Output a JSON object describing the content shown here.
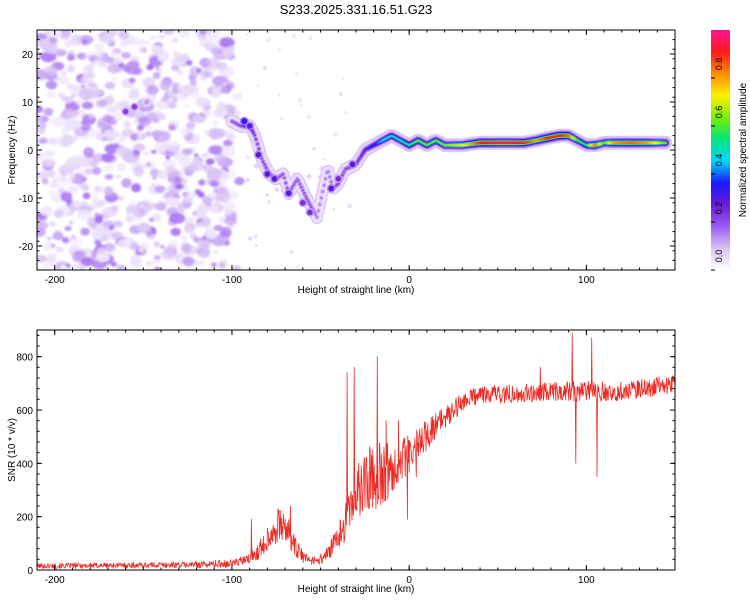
{
  "title": "S233.2025.331.16.51.G23",
  "colors": {
    "snr_line": "#ee2a24",
    "frame": "#000000",
    "background": "#ffffff",
    "colorbar": [
      "#ffffff",
      "#d9c2f5",
      "#9a5cf2",
      "#6a1bd6",
      "#1a1aff",
      "#00d8ff",
      "#00e67a",
      "#7cef00",
      "#fff000",
      "#ff8c00",
      "#ff1a1a",
      "#ff1493"
    ]
  },
  "chart_data": [
    {
      "type": "heatmap",
      "name": "spectrogram",
      "xlabel": "Height of straight line (km)",
      "ylabel": "Frequency (Hz)",
      "xlim": [
        -210,
        150
      ],
      "ylim": [
        -25,
        25
      ],
      "xticks": [
        -200,
        -100,
        0,
        100
      ],
      "yticks": [
        -20,
        -10,
        0,
        10,
        20
      ],
      "colorbar": {
        "label": "Normalized spectral amplitude",
        "range": [
          0,
          1
        ],
        "ticks": [
          "0.0",
          "0.2",
          "0.4",
          "0.6",
          "0.8"
        ]
      },
      "noise_region": {
        "x": [
          -210,
          -100
        ],
        "y": [
          -25,
          25
        ],
        "amplitude_range": [
          0.03,
          0.18
        ]
      },
      "ridge": [
        [
          -100,
          6,
          0.18
        ],
        [
          -95,
          5,
          0.2
        ],
        [
          -90,
          5,
          0.3
        ],
        [
          -87,
          3,
          0.22
        ],
        [
          -83,
          -2,
          0.2
        ],
        [
          -79,
          -5,
          0.22
        ],
        [
          -75,
          -6,
          0.2
        ],
        [
          -71,
          -5,
          0.18
        ],
        [
          -68,
          -9,
          0.2
        ],
        [
          -63,
          -6,
          0.18
        ],
        [
          -58,
          -10,
          0.2
        ],
        [
          -55,
          -12,
          0.2
        ],
        [
          -52,
          -14,
          0.15
        ],
        [
          -46,
          -4,
          0.15
        ],
        [
          -43,
          -8,
          0.18
        ],
        [
          -40,
          -7,
          0.22
        ],
        [
          -36,
          -4,
          0.2
        ],
        [
          -30,
          -3,
          0.22
        ],
        [
          -25,
          0,
          0.28
        ],
        [
          -20,
          1,
          0.35
        ],
        [
          -15,
          2,
          0.45
        ],
        [
          -10,
          3,
          0.5
        ],
        [
          -5,
          2,
          0.5
        ],
        [
          0,
          1,
          0.55
        ],
        [
          5,
          2,
          0.6
        ],
        [
          10,
          1,
          0.6
        ],
        [
          15,
          2,
          0.6
        ],
        [
          20,
          1,
          0.62
        ],
        [
          30,
          1,
          0.7
        ],
        [
          40,
          1.5,
          0.9
        ],
        [
          50,
          1.5,
          0.95
        ],
        [
          60,
          1.5,
          0.95
        ],
        [
          65,
          1.5,
          0.9
        ],
        [
          72,
          2,
          0.8
        ],
        [
          78,
          2.5,
          0.9
        ],
        [
          85,
          3,
          0.9
        ],
        [
          90,
          3,
          0.85
        ],
        [
          95,
          2,
          0.6
        ],
        [
          100,
          1,
          0.55
        ],
        [
          105,
          1,
          0.85
        ],
        [
          110,
          1.5,
          0.6
        ],
        [
          115,
          1.5,
          0.8
        ],
        [
          125,
          1.5,
          0.85
        ],
        [
          135,
          1.5,
          0.8
        ],
        [
          145,
          1.5,
          0.6
        ]
      ],
      "scattered_points": [
        [
          -93,
          6,
          0.35
        ],
        [
          -90,
          5,
          0.3
        ],
        [
          -85,
          -1,
          0.3
        ],
        [
          -80,
          -5,
          0.3
        ],
        [
          -76,
          -6,
          0.3
        ],
        [
          -68,
          -9,
          0.3
        ],
        [
          -60,
          -11,
          0.25
        ],
        [
          -56,
          -13,
          0.25
        ],
        [
          -44,
          -8,
          0.3
        ],
        [
          -40,
          -6,
          0.25
        ],
        [
          -32,
          -3,
          0.3
        ],
        [
          -155,
          9,
          0.22
        ],
        [
          -160,
          8,
          0.22
        ],
        [
          -148,
          10,
          0.12
        ]
      ]
    },
    {
      "type": "line",
      "name": "snr",
      "xlabel": "Height of straight line (km)",
      "ylabel": "SNR (10 * v/v)",
      "xlim": [
        -210,
        150
      ],
      "ylim": [
        0,
        900
      ],
      "xticks": [
        -200,
        -100,
        0,
        100
      ],
      "yticks": [
        0,
        200,
        400,
        600,
        800
      ],
      "envelope": [
        [
          -210,
          15,
          10
        ],
        [
          -120,
          20,
          12
        ],
        [
          -100,
          25,
          15
        ],
        [
          -90,
          40,
          20
        ],
        [
          -85,
          70,
          30
        ],
        [
          -80,
          120,
          50
        ],
        [
          -75,
          160,
          60
        ],
        [
          -72,
          170,
          60
        ],
        [
          -68,
          140,
          50
        ],
        [
          -64,
          80,
          40
        ],
        [
          -60,
          50,
          25
        ],
        [
          -55,
          35,
          15
        ],
        [
          -50,
          40,
          20
        ],
        [
          -45,
          70,
          30
        ],
        [
          -40,
          120,
          50
        ],
        [
          -35,
          200,
          80
        ],
        [
          -30,
          280,
          100
        ],
        [
          -25,
          330,
          120
        ],
        [
          -20,
          350,
          130
        ],
        [
          -15,
          360,
          130
        ],
        [
          -10,
          380,
          90
        ],
        [
          -5,
          410,
          80
        ],
        [
          0,
          430,
          80
        ],
        [
          5,
          470,
          70
        ],
        [
          10,
          510,
          60
        ],
        [
          15,
          540,
          50
        ],
        [
          20,
          570,
          40
        ],
        [
          25,
          600,
          40
        ],
        [
          30,
          630,
          35
        ],
        [
          40,
          660,
          35
        ],
        [
          60,
          660,
          35
        ],
        [
          80,
          670,
          35
        ],
        [
          100,
          670,
          40
        ],
        [
          120,
          670,
          35
        ],
        [
          150,
          700,
          35
        ]
      ],
      "spikes": [
        [
          -89,
          190
        ],
        [
          -74,
          230
        ],
        [
          -67,
          240
        ],
        [
          -35,
          740
        ],
        [
          -31,
          760
        ],
        [
          -18,
          800
        ],
        [
          -13,
          560
        ],
        [
          -6,
          560
        ],
        [
          4,
          350
        ],
        [
          -1,
          190
        ],
        [
          74,
          760
        ],
        [
          92,
          890
        ],
        [
          94,
          400
        ],
        [
          103,
          870
        ],
        [
          106,
          350
        ]
      ]
    }
  ]
}
